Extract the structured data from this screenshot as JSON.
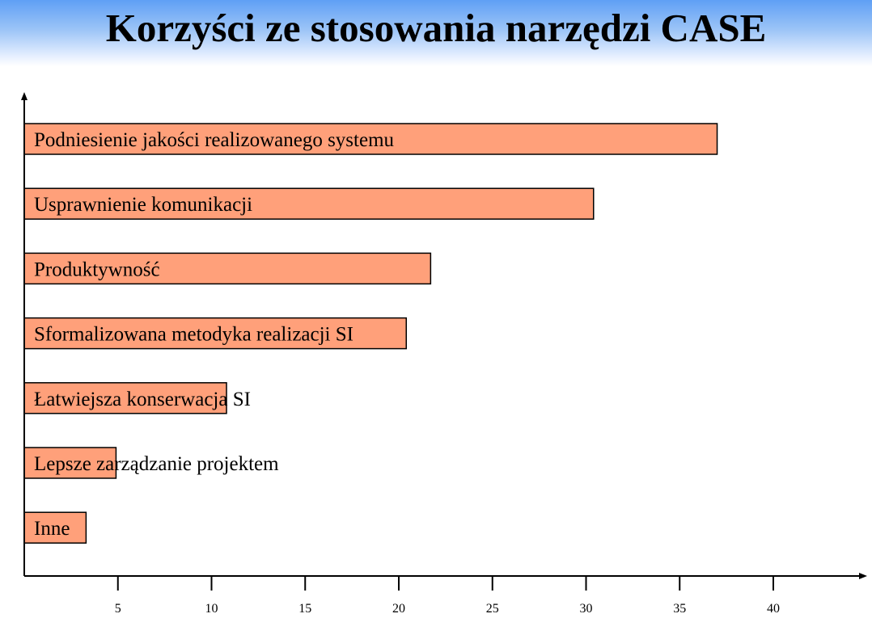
{
  "title": "Korzyści ze stosowania narzędzi CASE",
  "chart_data": {
    "type": "bar",
    "orientation": "horizontal",
    "title": "Korzyści ze stosowania narzędzi CASE",
    "xlabel": "",
    "ylabel": "",
    "categories": [
      "Podniesienie jakości realizowanego systemu",
      "Usprawnienie komunikacji",
      "Produktywność",
      "Sformalizowana metodyka realizacji SI",
      "Łatwiejsza konserwacja SI",
      "Lepsze zarządzanie projektem",
      "Inne"
    ],
    "values": [
      37,
      30.4,
      21.7,
      20.4,
      10.8,
      4.9,
      3.3
    ],
    "xticks": [
      5,
      10,
      15,
      20,
      25,
      30,
      35,
      40
    ],
    "xlim": [
      0,
      45
    ],
    "grid": false,
    "legend": "none",
    "bar_color": "#ffa07a"
  }
}
